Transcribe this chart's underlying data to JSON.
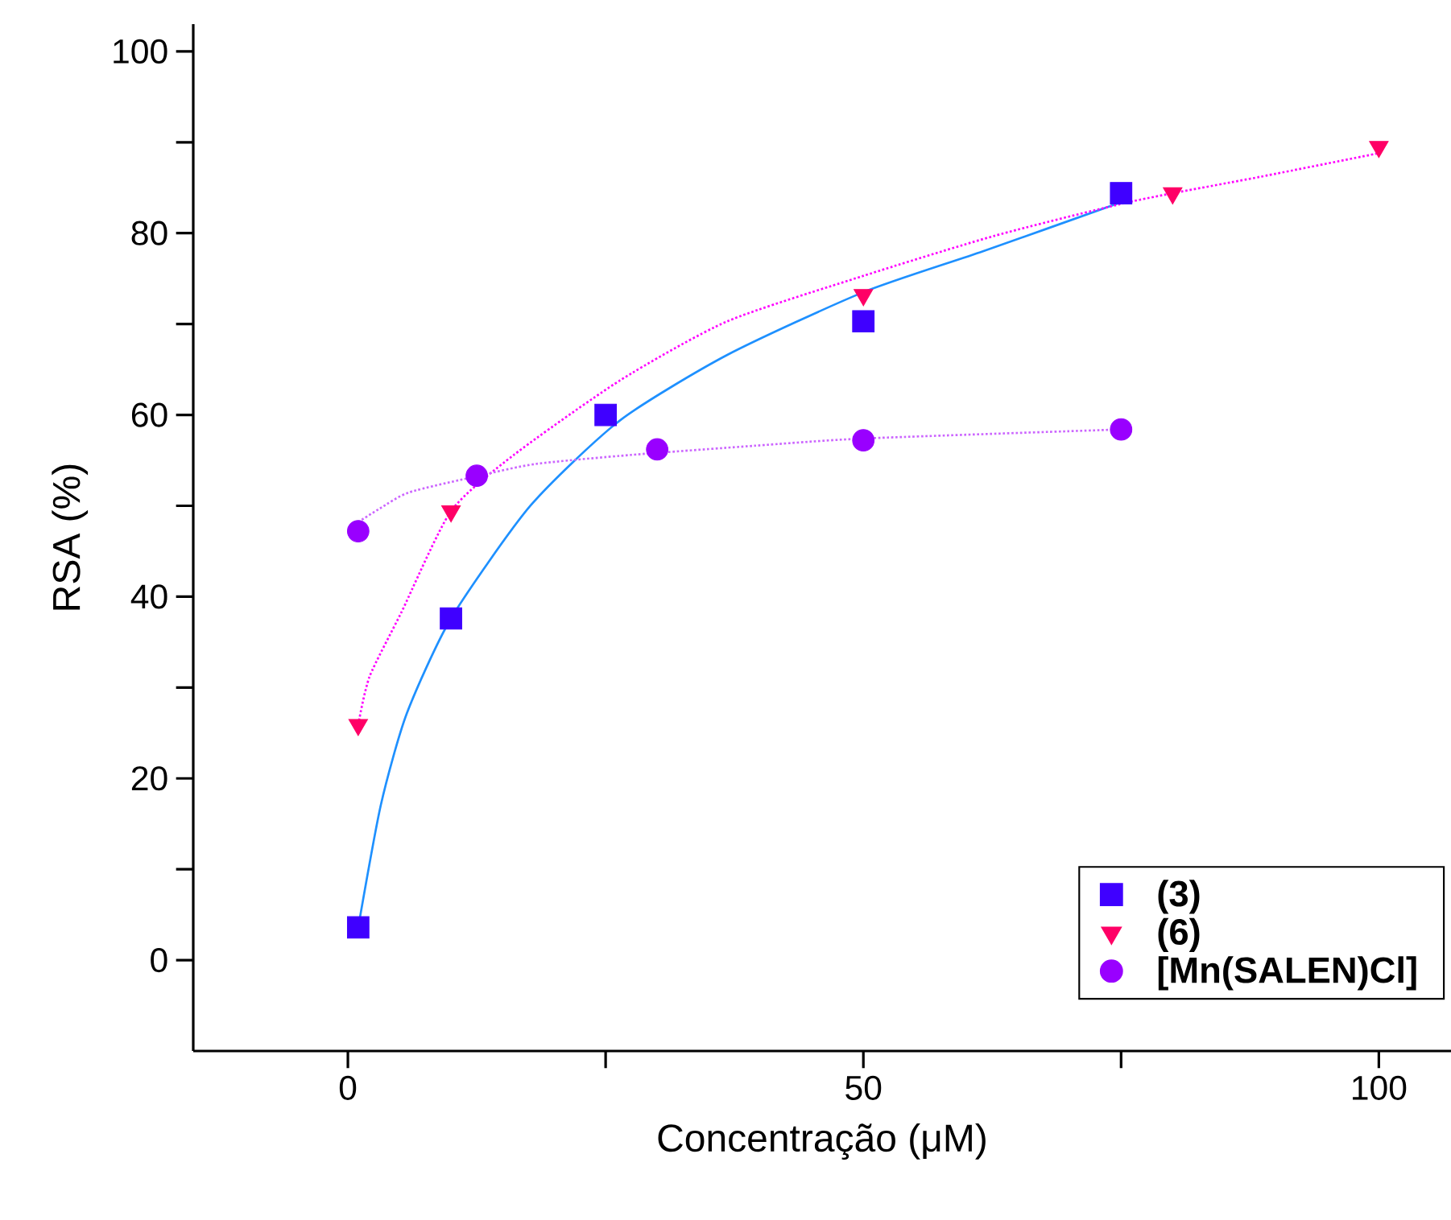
{
  "chart_data": {
    "type": "scatter",
    "xlabel": "Concentração (μM)",
    "ylabel": "RSA (%)",
    "xlim": [
      -15,
      107
    ],
    "ylim": [
      -10,
      103
    ],
    "xticks": [
      0,
      {
        "value": 25,
        "label": null
      },
      50,
      {
        "value": 75,
        "label": null
      },
      100
    ],
    "yticks": [
      0,
      {
        "value": 10,
        "label": null
      },
      20,
      {
        "value": 30,
        "label": null
      },
      40,
      {
        "value": 50,
        "label": null
      },
      60,
      {
        "value": 70,
        "label": null
      },
      80,
      {
        "value": 90,
        "label": null
      },
      100
    ],
    "grid": false,
    "legend": "bottom right",
    "series": [
      {
        "name": "(3)",
        "marker": "square",
        "color": "#3f00ff",
        "x": [
          1,
          10,
          25,
          50,
          75
        ],
        "values": [
          3.6,
          37.6,
          60.0,
          70.3,
          84.4
        ]
      },
      {
        "name": "(6)",
        "marker": "triangle",
        "color": "#ff0066",
        "x": [
          1,
          10,
          50,
          80,
          100
        ],
        "values": [
          25.9,
          49.4,
          73.2,
          84.4,
          89.5
        ]
      },
      {
        "name": "[Mn(SALEN)Cl]",
        "marker": "circle",
        "color": "#9900ff",
        "x": [
          1,
          12.5,
          30,
          50,
          75
        ],
        "values": [
          47.2,
          53.3,
          56.2,
          57.2,
          58.4
        ]
      },
      {
        "type": "line",
        "marker": "none",
        "line_style": "solid",
        "color": "#1e90ff",
        "x": [
          1,
          3.2,
          5.7,
          10,
          17.7,
          26.4,
          36.8,
          50,
          61.6,
          75
        ],
        "values": [
          3.6,
          17.1,
          27.1,
          37.6,
          50,
          59.4,
          66.6,
          73.5,
          78,
          83.4
        ]
      },
      {
        "type": "line",
        "marker": "none",
        "line_style": "dotted",
        "color": "#ff00ff",
        "x": [
          1,
          2.1,
          5.2,
          10,
          16.1,
          26.4,
          36.8,
          50,
          62.7,
          76.1,
          88.5,
          100
        ],
        "values": [
          25.9,
          31.2,
          38.3,
          49.4,
          55.6,
          63.8,
          70.3,
          75.3,
          79.7,
          83.5,
          86.2,
          88.8
        ]
      },
      {
        "type": "line",
        "marker": "none",
        "line_style": "dotted",
        "color": "#cc66ff",
        "x": [
          1,
          3.1,
          6,
          12.7,
          18.2,
          27.5,
          39.4,
          50,
          75
        ],
        "values": [
          48.2,
          49.7,
          51.5,
          53.3,
          54.6,
          55.6,
          56.6,
          57.4,
          58.4
        ]
      }
    ]
  }
}
